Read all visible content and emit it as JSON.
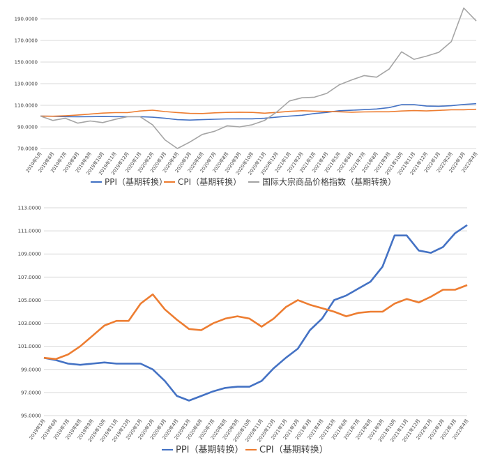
{
  "chart_data": [
    {
      "type": "line",
      "categories": [
        "2019年5月",
        "2019年6月",
        "2019年7月",
        "2019年8月",
        "2019年9月",
        "2019年10月",
        "2019年11月",
        "2019年12月",
        "2020年1月",
        "2020年2月",
        "2020年3月",
        "2020年4月",
        "2020年5月",
        "2020年6月",
        "2020年7月",
        "2020年8月",
        "2020年9月",
        "2020年10月",
        "2020年11月",
        "2020年12月",
        "2021年1月",
        "2021年2月",
        "2021年3月",
        "2021年4月",
        "2021年5月",
        "2021年6月",
        "2021年7月",
        "2021年8月",
        "2021年9月",
        "2021年10月",
        "2021年11月",
        "2021年12月",
        "2022年1月",
        "2022年2月",
        "2022年3月",
        "2022年4月"
      ],
      "ylim": [
        70,
        190
      ],
      "ytick_labels": [
        "70.0000",
        "90.0000",
        "110.0000",
        "130.0000",
        "150.0000",
        "170.0000",
        "190.0000"
      ],
      "ytick_values": [
        70,
        90,
        110,
        130,
        150,
        170,
        190
      ],
      "grid": true,
      "legend_position": "bottom",
      "series": [
        {
          "name": "PPI（基期转换）",
          "color": "#4472c4",
          "values": [
            100,
            99.8,
            99.5,
            99.4,
            99.5,
            99.6,
            99.5,
            99.5,
            99.5,
            99,
            98,
            96.7,
            96.3,
            96.7,
            97.1,
            97.4,
            97.5,
            97.5,
            98,
            99.1,
            100,
            100.8,
            102.4,
            103.4,
            105,
            105.4,
            106,
            106.6,
            107.9,
            110.6,
            110.6,
            109.3,
            109.1,
            109.6,
            110.8,
            111.5
          ]
        },
        {
          "name": "CPI（基期转换）",
          "color": "#ed7d31",
          "values": [
            100,
            99.9,
            100.3,
            101,
            101.9,
            102.8,
            103.2,
            103.2,
            104.7,
            105.5,
            104.2,
            103.3,
            102.5,
            102.4,
            103,
            103.4,
            103.6,
            103.4,
            102.7,
            103.4,
            104.4,
            105,
            104.6,
            104.3,
            104,
            103.6,
            103.9,
            104,
            104,
            104.7,
            105.1,
            104.8,
            105.3,
            105.9,
            105.9,
            106.3
          ]
        },
        {
          "name": "国际大宗商品价格指数（基期转换）",
          "color": "#a5a5a5",
          "values": [
            100,
            96,
            98,
            93.5,
            95.5,
            94,
            97,
            99.5,
            99.5,
            92,
            78,
            70,
            76,
            83,
            86,
            91,
            90,
            92,
            96,
            104,
            114,
            117,
            117.5,
            121,
            129,
            133.5,
            137.5,
            136,
            143.5,
            159.5,
            152.5,
            155.5,
            159,
            169,
            200,
            188
          ]
        }
      ]
    },
    {
      "type": "line",
      "categories": [
        "2019年5月",
        "2019年6月",
        "2019年7月",
        "2019年8月",
        "2019年9月",
        "2019年10月",
        "2019年11月",
        "2019年12月",
        "2020年1月",
        "2020年2月",
        "2020年3月",
        "2020年4月",
        "2020年5月",
        "2020年6月",
        "2020年7月",
        "2020年8月",
        "2020年9月",
        "2020年10月",
        "2020年11月",
        "2020年12月",
        "2021年1月",
        "2021年2月",
        "2021年3月",
        "2021年4月",
        "2021年5月",
        "2021年6月",
        "2021年7月",
        "2021年8月",
        "2021年9月",
        "2021年10月",
        "2021年11月",
        "2021年12月",
        "2022年1月",
        "2022年2月",
        "2022年3月",
        "2022年4月"
      ],
      "ylim": [
        95,
        113
      ],
      "ytick_labels": [
        "95.0000",
        "97.0000",
        "99.0000",
        "101.0000",
        "103.0000",
        "105.0000",
        "107.0000",
        "109.0000",
        "111.0000",
        "113.0000"
      ],
      "ytick_values": [
        95,
        97,
        99,
        101,
        103,
        105,
        107,
        109,
        111,
        113
      ],
      "grid": true,
      "legend_position": "bottom",
      "series": [
        {
          "name": "PPI（基期转换）",
          "color": "#4472c4",
          "values": [
            100,
            99.8,
            99.5,
            99.4,
            99.5,
            99.6,
            99.5,
            99.5,
            99.5,
            99,
            98,
            96.7,
            96.3,
            96.7,
            97.1,
            97.4,
            97.5,
            97.5,
            98,
            99.1,
            100,
            100.8,
            102.4,
            103.4,
            105,
            105.4,
            106,
            106.6,
            107.9,
            110.6,
            110.6,
            109.3,
            109.1,
            109.6,
            110.8,
            111.5
          ]
        },
        {
          "name": "CPI（基期转换）",
          "color": "#ed7d31",
          "values": [
            100,
            99.9,
            100.3,
            101,
            101.9,
            102.8,
            103.2,
            103.2,
            104.7,
            105.5,
            104.2,
            103.3,
            102.5,
            102.4,
            103,
            103.4,
            103.6,
            103.4,
            102.7,
            103.4,
            104.4,
            105,
            104.6,
            104.3,
            104,
            103.6,
            103.9,
            104,
            104,
            104.7,
            105.1,
            104.8,
            105.3,
            105.9,
            105.9,
            106.3
          ]
        }
      ]
    }
  ]
}
